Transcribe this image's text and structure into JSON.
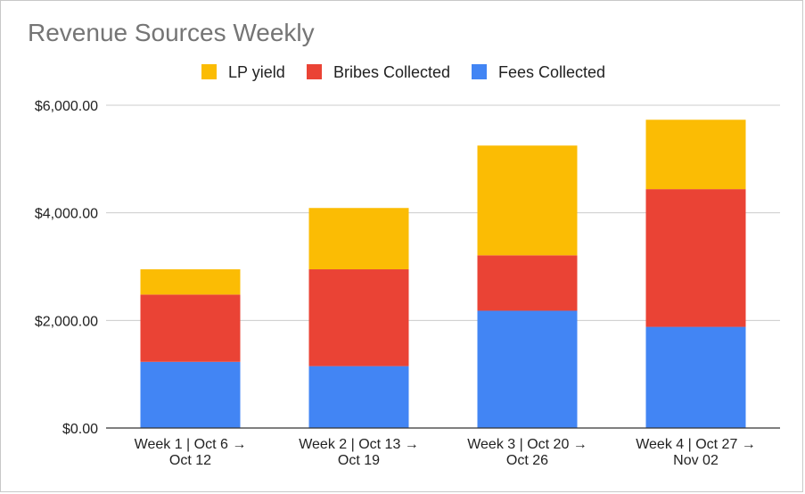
{
  "chart_data": {
    "type": "bar",
    "stacked": true,
    "title": "Revenue Sources Weekly",
    "xlabel": "",
    "ylabel": "",
    "categories": [
      [
        "Week 1 | Oct 6 →",
        "Oct 12"
      ],
      [
        "Week 2 | Oct 13 →",
        "Oct 19"
      ],
      [
        "Week 3 | Oct 20 →",
        "Oct 26"
      ],
      [
        "Week 4 | Oct 27 →",
        "Nov 02"
      ]
    ],
    "series": [
      {
        "name": "Fees Collected",
        "color": "#4285f4",
        "values": [
          1230,
          1150,
          2180,
          1880
        ]
      },
      {
        "name": "Bribes Collected",
        "color": "#ea4335",
        "values": [
          1250,
          1800,
          1030,
          2560
        ]
      },
      {
        "name": "LP yield",
        "color": "#fbbc04",
        "values": [
          470,
          1140,
          2040,
          1290
        ]
      }
    ],
    "legend_order": [
      "LP yield",
      "Bribes Collected",
      "Fees Collected"
    ],
    "legend_position": "top",
    "ylim": [
      0,
      6000
    ],
    "yticks": [
      0,
      2000,
      4000,
      6000
    ],
    "ytick_labels": [
      "$0.00",
      "$2,000.00",
      "$4,000.00",
      "$6,000.00"
    ],
    "grid": true
  }
}
